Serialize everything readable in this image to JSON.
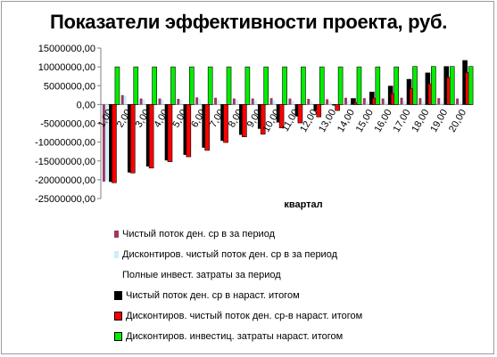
{
  "chart_data": {
    "type": "bar",
    "title": "Показатели эффективности проекта, руб.",
    "xlabel": "квартал",
    "ylabel": "",
    "ylim": [
      -25000000,
      15000000
    ],
    "y_ticks": [
      15000000,
      10000000,
      5000000,
      0,
      -5000000,
      -10000000,
      -15000000,
      -20000000,
      -25000000
    ],
    "y_tick_labels": [
      "15000000,00",
      "10000000,00",
      "5000000,00",
      "0,00",
      "-5000000,00",
      "-10000000,00",
      "-15000000,00",
      "-20000000,00",
      "-25000000,00"
    ],
    "categories": [
      "1,00",
      "2,00",
      "3,00",
      "4,00",
      "5,00",
      "6,00",
      "7,00",
      "8,00",
      "9,00",
      "10,00",
      "11,00",
      "12,00",
      "13,00",
      "14,00",
      "15,00",
      "16,00",
      "17,00",
      "18,00",
      "19,00",
      "20,00"
    ],
    "grid": false,
    "legend_position": "bottom",
    "series": [
      {
        "name": "Чистый поток ден. ср в за период",
        "color": "#9b3a60",
        "values": [
          -20500000,
          2500000,
          1600000,
          1600000,
          1500000,
          1900000,
          1800000,
          1600000,
          1600000,
          1700000,
          1600000,
          1500000,
          1400000,
          1800000,
          1700000,
          1600000,
          1800000,
          1700000,
          1700000,
          1600000
        ]
      },
      {
        "name": "Дисконтиров. чистый поток ден. ср в за период",
        "color": "#cceeff",
        "values": [
          -20300000,
          2200000,
          1300000,
          1300000,
          1200000,
          1400000,
          1300000,
          1200000,
          1100000,
          1100000,
          1000000,
          900000,
          800000,
          1000000,
          900000,
          800000,
          900000,
          800000,
          800000,
          700000
        ]
      },
      {
        "name": "Полные инвест. затраты за период",
        "color": "#ffffff",
        "values": [
          0,
          0,
          0,
          0,
          0,
          0,
          0,
          0,
          0,
          0,
          0,
          0,
          0,
          0,
          0,
          0,
          0,
          0,
          0,
          0
        ]
      },
      {
        "name": "Чистый поток ден. ср в нараст. итогом",
        "color": "#000000",
        "values": [
          -20500000,
          -18000000,
          -16400000,
          -14800000,
          -13300000,
          -11400000,
          -9600000,
          -8000000,
          -6400000,
          -4700000,
          -3100000,
          -1600000,
          -200000,
          1600000,
          3300000,
          4900000,
          6700000,
          8400000,
          10100000,
          11700000
        ]
      },
      {
        "name": "Дисконтиров. чистый поток ден. ср-в нараст. итогом",
        "color": "#ff0000",
        "values": [
          -20800000,
          -18200000,
          -16900000,
          -15200000,
          -13900000,
          -12200000,
          -10100000,
          -8600000,
          -7900000,
          -6200000,
          -4900000,
          -3300000,
          -1600000,
          500000,
          1700000,
          2900000,
          4200000,
          5500000,
          7200000,
          8500000
        ]
      },
      {
        "name": "Дисконтиров. инвестиц. затраты нараст. итогом",
        "color": "#00ee00",
        "values": [
          10000000,
          10000000,
          10000000,
          10000000,
          10000000,
          10000000,
          10000000,
          10000000,
          10000000,
          10000000,
          10000000,
          10000000,
          10000000,
          10000000,
          10000000,
          10000000,
          10100000,
          10100000,
          10100000,
          10100000
        ]
      }
    ]
  }
}
